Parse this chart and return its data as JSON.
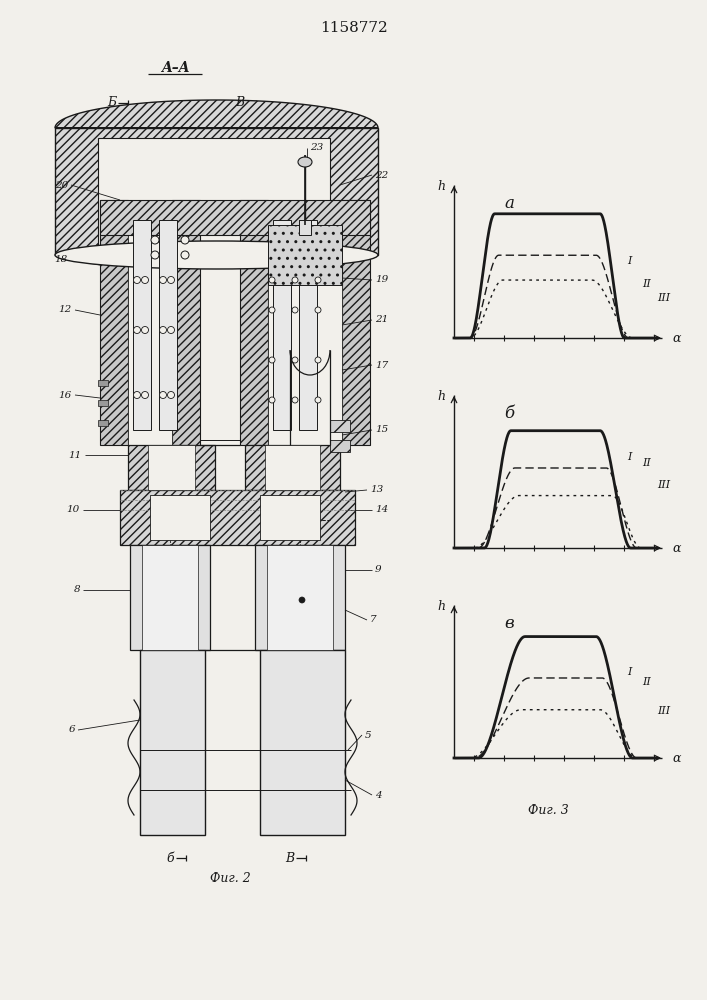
{
  "patent_number": "1158772",
  "fig2_label": "Фиг. 2",
  "fig3_label": "Фиг. 3",
  "aa_label": "A–A",
  "background_color": "#f2f0eb",
  "line_color": "#1a1a1a",
  "graph_a": "а",
  "graph_b": "б",
  "graph_v": "в",
  "h_label": "h",
  "alpha_label": "α",
  "curves": {
    "a": {
      "I": [
        0.08,
        0.2,
        0.72,
        0.84,
        0.9
      ],
      "II": [
        0.08,
        0.22,
        0.7,
        0.86,
        0.6
      ],
      "III": [
        0.08,
        0.24,
        0.68,
        0.88,
        0.42
      ]
    },
    "b": {
      "I": [
        0.15,
        0.28,
        0.72,
        0.87,
        0.85
      ],
      "II": [
        0.12,
        0.3,
        0.75,
        0.9,
        0.58
      ],
      "III": [
        0.1,
        0.32,
        0.78,
        0.92,
        0.38
      ]
    },
    "v": {
      "I": [
        0.12,
        0.35,
        0.7,
        0.88,
        0.88
      ],
      "II": [
        0.1,
        0.37,
        0.73,
        0.9,
        0.58
      ],
      "III": [
        0.08,
        0.33,
        0.72,
        0.9,
        0.35
      ]
    }
  }
}
